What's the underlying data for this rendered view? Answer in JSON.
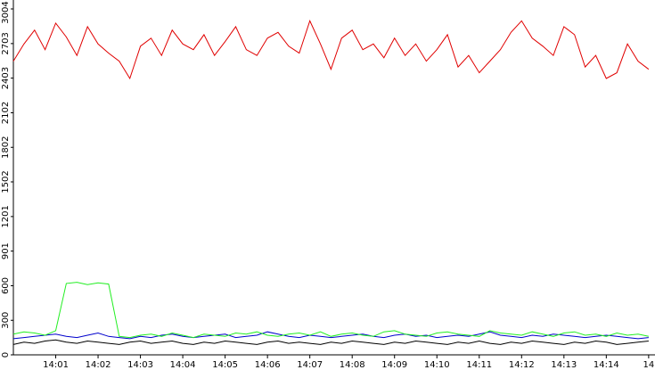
{
  "chart_data": {
    "type": "line",
    "x": [
      840,
      840.25,
      840.5,
      840.75,
      841,
      841.25,
      841.5,
      841.75,
      842,
      842.25,
      842.5,
      842.75,
      843,
      843.25,
      843.5,
      843.75,
      844,
      844.25,
      844.5,
      844.75,
      845,
      845.25,
      845.5,
      845.75,
      846,
      846.25,
      846.5,
      846.75,
      847,
      847.25,
      847.5,
      847.75,
      848,
      848.25,
      848.5,
      848.75,
      849,
      849.25,
      849.5,
      849.75,
      850,
      850.25,
      850.5,
      850.75,
      851,
      851.25,
      851.5,
      851.75,
      852,
      852.25,
      852.5,
      852.75,
      853,
      853.25,
      853.5,
      853.75,
      854,
      854.25,
      854.5,
      854.75,
      855
    ],
    "xlim": [
      840,
      855.15
    ],
    "xticks": [
      {
        "value": 841,
        "label": "14:01"
      },
      {
        "value": 842,
        "label": "14:02"
      },
      {
        "value": 843,
        "label": "14:03"
      },
      {
        "value": 844,
        "label": "14:04"
      },
      {
        "value": 845,
        "label": "14:05"
      },
      {
        "value": 846,
        "label": "14:06"
      },
      {
        "value": 847,
        "label": "14:07"
      },
      {
        "value": 848,
        "label": "14:08"
      },
      {
        "value": 849,
        "label": "14:09"
      },
      {
        "value": 850,
        "label": "14:10"
      },
      {
        "value": 851,
        "label": "14:11"
      },
      {
        "value": 852,
        "label": "14:12"
      },
      {
        "value": 853,
        "label": "14:13"
      },
      {
        "value": 854,
        "label": "14:14"
      },
      {
        "value": 855,
        "label": "14"
      }
    ],
    "ylim": [
      0,
      3004
    ],
    "yticks": [
      0,
      300,
      600,
      901,
      1201,
      1502,
      1802,
      2102,
      2403,
      2703,
      3004
    ],
    "series": [
      {
        "color": "#e00000",
        "values": [
          2550,
          2700,
          2820,
          2650,
          2880,
          2760,
          2600,
          2850,
          2700,
          2620,
          2550,
          2400,
          2680,
          2750,
          2600,
          2820,
          2700,
          2650,
          2780,
          2600,
          2720,
          2850,
          2650,
          2600,
          2750,
          2800,
          2680,
          2620,
          2900,
          2700,
          2480,
          2750,
          2820,
          2650,
          2700,
          2580,
          2750,
          2600,
          2700,
          2550,
          2650,
          2780,
          2500,
          2600,
          2450,
          2550,
          2650,
          2800,
          2900,
          2750,
          2680,
          2600,
          2850,
          2780,
          2500,
          2600,
          2400,
          2450,
          2700,
          2550,
          2480
        ]
      },
      {
        "color": "#22ee22",
        "values": [
          180,
          200,
          190,
          170,
          210,
          620,
          630,
          610,
          625,
          615,
          160,
          150,
          170,
          180,
          160,
          190,
          170,
          150,
          180,
          170,
          160,
          190,
          180,
          200,
          170,
          160,
          180,
          190,
          170,
          200,
          160,
          180,
          190,
          170,
          160,
          200,
          210,
          180,
          170,
          160,
          190,
          200,
          180,
          170,
          160,
          210,
          190,
          180,
          170,
          200,
          180,
          160,
          190,
          200,
          170,
          180,
          160,
          190,
          170,
          180,
          160
        ]
      },
      {
        "color": "#0000cc",
        "values": [
          140,
          150,
          160,
          170,
          180,
          160,
          150,
          170,
          190,
          160,
          150,
          140,
          160,
          150,
          170,
          180,
          160,
          150,
          160,
          170,
          180,
          150,
          160,
          170,
          200,
          180,
          160,
          150,
          170,
          160,
          150,
          160,
          170,
          180,
          160,
          150,
          170,
          180,
          160,
          170,
          150,
          160,
          170,
          160,
          180,
          200,
          170,
          160,
          150,
          170,
          160,
          180,
          170,
          160,
          150,
          160,
          170,
          160,
          150,
          140,
          150
        ]
      },
      {
        "color": "#000000",
        "values": [
          90,
          110,
          100,
          120,
          130,
          110,
          100,
          120,
          110,
          100,
          90,
          110,
          120,
          100,
          110,
          120,
          100,
          90,
          110,
          100,
          120,
          110,
          100,
          90,
          110,
          120,
          100,
          110,
          100,
          90,
          110,
          100,
          120,
          110,
          100,
          90,
          110,
          100,
          120,
          110,
          100,
          90,
          110,
          100,
          120,
          100,
          90,
          110,
          100,
          120,
          110,
          100,
          90,
          110,
          100,
          120,
          110,
          90,
          100,
          110,
          120
        ]
      }
    ]
  }
}
